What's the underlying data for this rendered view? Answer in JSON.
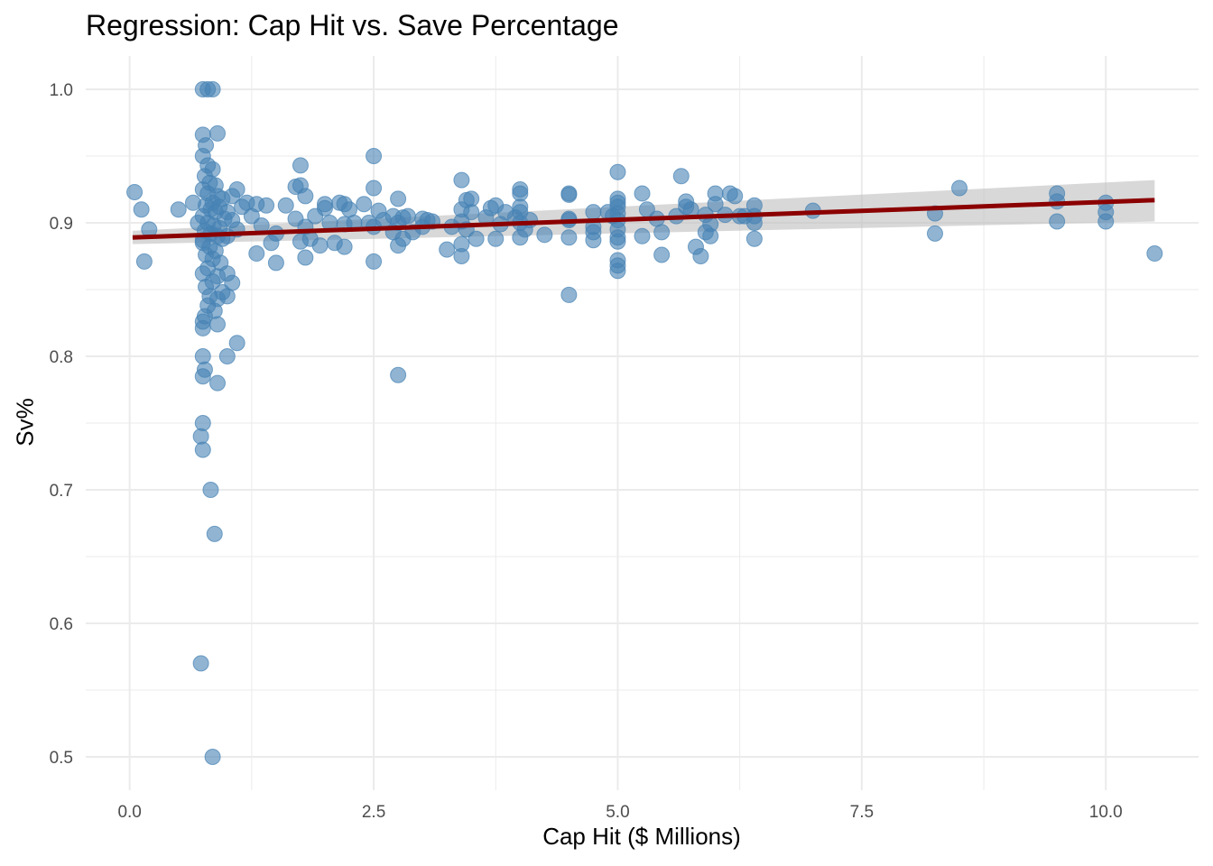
{
  "chart_data": {
    "type": "scatter",
    "title": "Regression: Cap Hit vs. Save Percentage",
    "xlabel": "Cap Hit ($ Millions)",
    "ylabel": "Sv%",
    "xlim": [
      -0.45,
      10.95
    ],
    "ylim": [
      0.475,
      1.025
    ],
    "x_ticks": [
      0.0,
      2.5,
      5.0,
      7.5,
      10.0
    ],
    "x_tick_labels": [
      "0.0",
      "2.5",
      "5.0",
      "7.5",
      "10.0"
    ],
    "y_ticks": [
      0.5,
      0.6,
      0.7,
      0.8,
      0.9,
      1.0
    ],
    "y_tick_labels": [
      "0.5",
      "0.6",
      "0.7",
      "0.8",
      "0.9",
      "1.0"
    ],
    "grid": true,
    "point_color": "#4682b4",
    "line_color": "#8b0000",
    "band_color": "#bebebe",
    "regression": {
      "x": [
        0.03,
        10.5
      ],
      "y": [
        0.889,
        0.917
      ],
      "ci_lower": [
        0.884,
        0.901
      ],
      "ci_upper": [
        0.894,
        0.932
      ]
    },
    "points": [
      [
        0.75,
        1.0
      ],
      [
        0.8,
        1.0
      ],
      [
        0.85,
        1.0
      ],
      [
        0.75,
        0.966
      ],
      [
        0.9,
        0.967
      ],
      [
        0.78,
        0.958
      ],
      [
        0.75,
        0.95
      ],
      [
        0.8,
        0.943
      ],
      [
        0.85,
        0.94
      ],
      [
        0.77,
        0.935
      ],
      [
        0.82,
        0.93
      ],
      [
        0.88,
        0.928
      ],
      [
        0.75,
        0.925
      ],
      [
        0.8,
        0.922
      ],
      [
        0.9,
        0.92
      ],
      [
        0.95,
        0.918
      ],
      [
        0.85,
        0.915
      ],
      [
        0.78,
        0.913
      ],
      [
        0.92,
        0.912
      ],
      [
        0.83,
        0.91
      ],
      [
        0.88,
        0.908
      ],
      [
        0.75,
        0.905
      ],
      [
        0.97,
        0.903
      ],
      [
        0.8,
        0.9
      ],
      [
        0.86,
        0.898
      ],
      [
        0.92,
        0.896
      ],
      [
        0.77,
        0.894
      ],
      [
        0.83,
        0.892
      ],
      [
        0.9,
        0.89
      ],
      [
        0.95,
        0.888
      ],
      [
        0.75,
        0.885
      ],
      [
        0.82,
        0.882
      ],
      [
        0.88,
        0.879
      ],
      [
        0.78,
        0.876
      ],
      [
        0.85,
        0.873
      ],
      [
        0.93,
        0.87
      ],
      [
        0.8,
        0.866
      ],
      [
        0.75,
        0.862
      ],
      [
        0.9,
        0.86
      ],
      [
        0.85,
        0.856
      ],
      [
        0.78,
        0.852
      ],
      [
        0.95,
        0.848
      ],
      [
        0.82,
        0.845
      ],
      [
        0.9,
        0.843
      ],
      [
        0.8,
        0.838
      ],
      [
        0.87,
        0.834
      ],
      [
        0.77,
        0.83
      ],
      [
        0.75,
        0.826
      ],
      [
        0.9,
        0.824
      ],
      [
        0.75,
        0.821
      ],
      [
        1.0,
        0.862
      ],
      [
        1.05,
        0.855
      ],
      [
        1.0,
        0.845
      ],
      [
        1.1,
        0.81
      ],
      [
        1.0,
        0.8
      ],
      [
        0.75,
        0.8
      ],
      [
        0.77,
        0.79
      ],
      [
        0.75,
        0.785
      ],
      [
        0.9,
        0.78
      ],
      [
        0.75,
        0.75
      ],
      [
        0.73,
        0.74
      ],
      [
        0.75,
        0.73
      ],
      [
        0.83,
        0.7
      ],
      [
        0.87,
        0.667
      ],
      [
        0.73,
        0.57
      ],
      [
        0.85,
        0.5
      ],
      [
        1.05,
        0.92
      ],
      [
        1.1,
        0.925
      ],
      [
        1.15,
        0.912
      ],
      [
        1.0,
        0.908
      ],
      [
        1.05,
        0.902
      ],
      [
        1.1,
        0.895
      ],
      [
        1.0,
        0.89
      ],
      [
        1.2,
        0.915
      ],
      [
        1.3,
        0.914
      ],
      [
        1.25,
        0.905
      ],
      [
        1.4,
        0.913
      ],
      [
        1.35,
        0.898
      ],
      [
        1.3,
        0.877
      ],
      [
        1.45,
        0.885
      ],
      [
        1.5,
        0.87
      ],
      [
        1.5,
        0.892
      ],
      [
        1.6,
        0.913
      ],
      [
        1.7,
        0.927
      ],
      [
        1.75,
        0.943
      ],
      [
        1.75,
        0.928
      ],
      [
        1.8,
        0.92
      ],
      [
        1.7,
        0.903
      ],
      [
        1.8,
        0.897
      ],
      [
        1.75,
        0.886
      ],
      [
        1.85,
        0.888
      ],
      [
        1.8,
        0.874
      ],
      [
        1.9,
        0.905
      ],
      [
        2.0,
        0.914
      ],
      [
        2.0,
        0.911
      ],
      [
        1.95,
        0.883
      ],
      [
        2.05,
        0.9
      ],
      [
        2.1,
        0.885
      ],
      [
        2.15,
        0.915
      ],
      [
        2.2,
        0.914
      ],
      [
        2.25,
        0.91
      ],
      [
        2.2,
        0.899
      ],
      [
        2.2,
        0.882
      ],
      [
        2.3,
        0.9
      ],
      [
        2.4,
        0.914
      ],
      [
        2.45,
        0.9
      ],
      [
        2.5,
        0.95
      ],
      [
        2.5,
        0.926
      ],
      [
        2.55,
        0.909
      ],
      [
        2.5,
        0.897
      ],
      [
        2.6,
        0.902
      ],
      [
        2.5,
        0.871
      ],
      [
        2.7,
        0.905
      ],
      [
        2.75,
        0.918
      ],
      [
        2.8,
        0.904
      ],
      [
        2.75,
        0.9
      ],
      [
        2.7,
        0.893
      ],
      [
        2.8,
        0.888
      ],
      [
        2.75,
        0.883
      ],
      [
        2.75,
        0.786
      ],
      [
        2.85,
        0.905
      ],
      [
        2.9,
        0.893
      ],
      [
        3.0,
        0.903
      ],
      [
        3.05,
        0.902
      ],
      [
        3.0,
        0.897
      ],
      [
        3.1,
        0.901
      ],
      [
        3.25,
        0.88
      ],
      [
        3.3,
        0.897
      ],
      [
        3.4,
        0.932
      ],
      [
        3.45,
        0.917
      ],
      [
        3.5,
        0.918
      ],
      [
        3.4,
        0.91
      ],
      [
        3.5,
        0.908
      ],
      [
        3.4,
        0.901
      ],
      [
        3.45,
        0.895
      ],
      [
        3.55,
        0.888
      ],
      [
        3.4,
        0.884
      ],
      [
        3.4,
        0.875
      ],
      [
        3.65,
        0.904
      ],
      [
        3.7,
        0.911
      ],
      [
        3.75,
        0.913
      ],
      [
        3.85,
        0.908
      ],
      [
        3.8,
        0.899
      ],
      [
        3.75,
        0.888
      ],
      [
        4.0,
        0.925
      ],
      [
        4.0,
        0.922
      ],
      [
        4.0,
        0.912
      ],
      [
        4.0,
        0.908
      ],
      [
        3.95,
        0.904
      ],
      [
        4.0,
        0.9
      ],
      [
        4.05,
        0.895
      ],
      [
        4.0,
        0.889
      ],
      [
        4.1,
        0.902
      ],
      [
        4.25,
        0.891
      ],
      [
        4.5,
        0.922
      ],
      [
        4.5,
        0.921
      ],
      [
        4.5,
        0.903
      ],
      [
        4.5,
        0.902
      ],
      [
        4.5,
        0.889
      ],
      [
        4.5,
        0.846
      ],
      [
        4.75,
        0.908
      ],
      [
        4.75,
        0.897
      ],
      [
        4.75,
        0.893
      ],
      [
        4.75,
        0.887
      ],
      [
        4.9,
        0.908
      ],
      [
        4.95,
        0.905
      ],
      [
        5.0,
        0.938
      ],
      [
        5.0,
        0.918
      ],
      [
        5.0,
        0.915
      ],
      [
        5.0,
        0.912
      ],
      [
        5.0,
        0.907
      ],
      [
        5.0,
        0.902
      ],
      [
        5.0,
        0.895
      ],
      [
        5.0,
        0.889
      ],
      [
        5.0,
        0.886
      ],
      [
        5.0,
        0.872
      ],
      [
        5.0,
        0.868
      ],
      [
        5.0,
        0.864
      ],
      [
        5.25,
        0.922
      ],
      [
        5.3,
        0.91
      ],
      [
        5.25,
        0.89
      ],
      [
        5.4,
        0.903
      ],
      [
        5.45,
        0.893
      ],
      [
        5.45,
        0.876
      ],
      [
        5.65,
        0.935
      ],
      [
        5.7,
        0.916
      ],
      [
        5.7,
        0.912
      ],
      [
        5.6,
        0.905
      ],
      [
        5.75,
        0.91
      ],
      [
        5.8,
        0.882
      ],
      [
        5.9,
        0.906
      ],
      [
        5.9,
        0.893
      ],
      [
        6.0,
        0.922
      ],
      [
        6.0,
        0.914
      ],
      [
        5.95,
        0.899
      ],
      [
        5.95,
        0.89
      ],
      [
        5.85,
        0.875
      ],
      [
        6.1,
        0.906
      ],
      [
        6.15,
        0.922
      ],
      [
        6.25,
        0.905
      ],
      [
        6.3,
        0.905
      ],
      [
        6.4,
        0.913
      ],
      [
        6.4,
        0.905
      ],
      [
        6.4,
        0.9
      ],
      [
        6.4,
        0.888
      ],
      [
        6.2,
        0.92
      ],
      [
        7.0,
        0.909
      ],
      [
        8.25,
        0.907
      ],
      [
        8.25,
        0.892
      ],
      [
        8.5,
        0.926
      ],
      [
        9.5,
        0.922
      ],
      [
        9.5,
        0.916
      ],
      [
        9.5,
        0.901
      ],
      [
        10.0,
        0.915
      ],
      [
        10.0,
        0.908
      ],
      [
        10.0,
        0.901
      ],
      [
        10.5,
        0.877
      ],
      [
        0.05,
        0.923
      ],
      [
        0.12,
        0.91
      ],
      [
        0.15,
        0.871
      ],
      [
        0.2,
        0.895
      ],
      [
        0.5,
        0.91
      ],
      [
        0.65,
        0.915
      ],
      [
        0.7,
        0.9
      ],
      [
        0.75,
        0.887
      ]
    ]
  }
}
